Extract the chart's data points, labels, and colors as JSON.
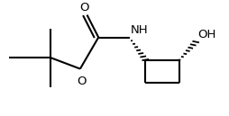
{
  "background_color": "#ffffff",
  "line_color": "#000000",
  "line_width": 1.5,
  "figsize": [
    2.54,
    1.29
  ],
  "dpi": 100,
  "xlim": [
    0.0,
    1.0
  ],
  "ylim": [
    0.0,
    1.0
  ]
}
